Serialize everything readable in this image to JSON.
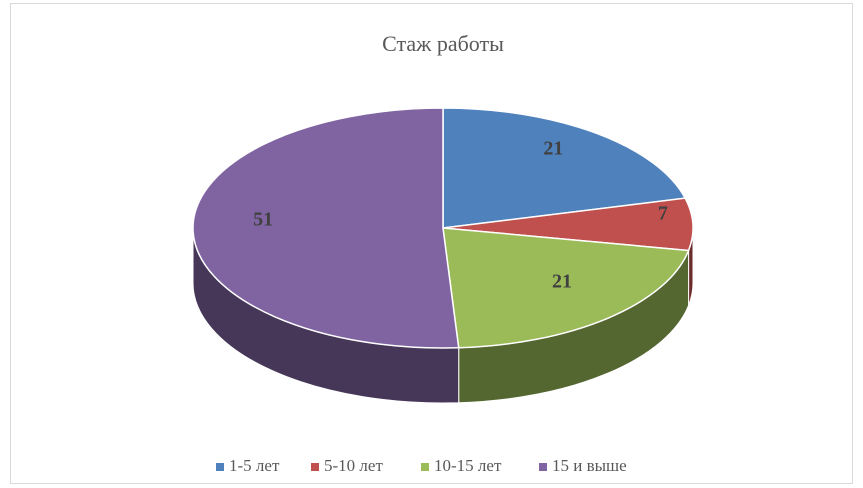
{
  "chart_data": {
    "type": "pie",
    "title": "Стаж работы",
    "categories": [
      "1-5 лет",
      "5-10 лет",
      "10-15 лет",
      "15 и выше"
    ],
    "values": [
      21,
      7,
      21,
      51
    ],
    "colors": [
      "#4f81bd",
      "#c0504d",
      "#9bbb59",
      "#8064a2"
    ],
    "legend": "bottom"
  }
}
